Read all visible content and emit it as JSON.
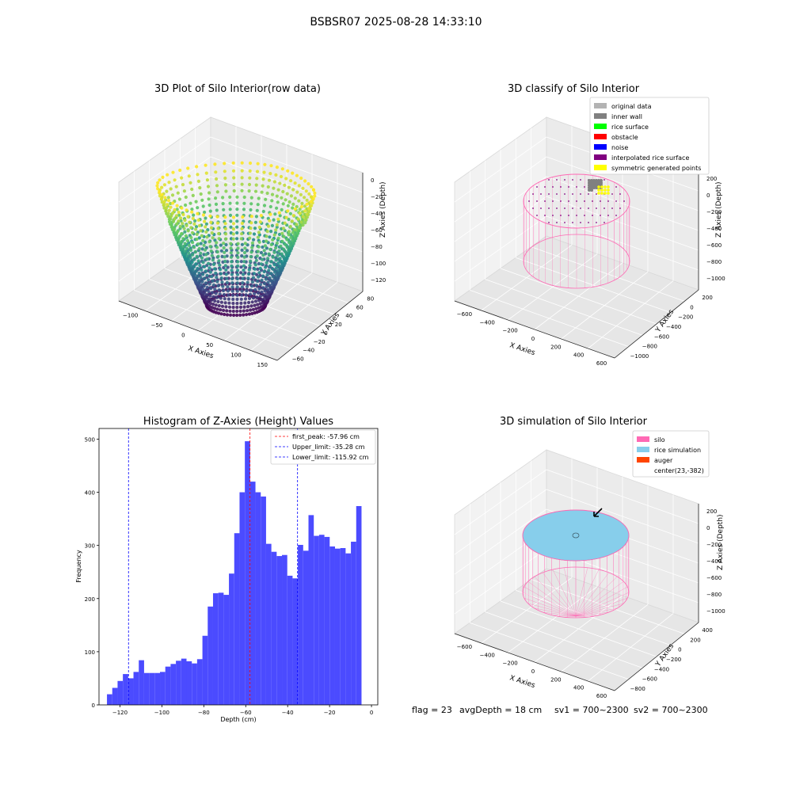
{
  "suptitle": "BSBSR07 2025-08-28 14:33:10",
  "status_line": {
    "flag": "flag = 23",
    "avg_depth": "avgDepth = 18 cm",
    "sv1": "sv1 = 700~2300",
    "sv2": "sv2 = 700~2300"
  },
  "panels": {
    "raw": {
      "title": "3D Plot of Silo Interior(row data)",
      "xlabel": "X Axies",
      "ylabel": "Y Axies",
      "zlabel": "Z Axies (Depth)",
      "x_ticks": [
        "−100",
        "−50",
        "0",
        "50",
        "100",
        "150"
      ],
      "y_ticks": [
        "−60",
        "−40",
        "−20",
        "0",
        "20",
        "40",
        "60",
        "80"
      ],
      "z_ticks": [
        "0",
        "−20",
        "−40",
        "−60",
        "−80",
        "−100",
        "−120"
      ],
      "colormap": [
        "#440154",
        "#3b528b",
        "#21918c",
        "#5ec962",
        "#fde725"
      ]
    },
    "classify": {
      "title": "3D classify of Silo Interior",
      "xlabel": "X Axies",
      "ylabel": "Y Axies",
      "zlabel": "Z Axies (Depth)",
      "x_ticks": [
        "−600",
        "−400",
        "−200",
        "0",
        "200",
        "400",
        "600"
      ],
      "y_ticks": [
        "−1000",
        "−800",
        "−600",
        "−400",
        "−200",
        "0",
        "200"
      ],
      "z_ticks": [
        "200",
        "0",
        "−200",
        "−400",
        "−600",
        "−800",
        "−1000"
      ],
      "legend": [
        {
          "label": "original data",
          "color": "#b3b3b3"
        },
        {
          "label": "inner wall",
          "color": "#808080"
        },
        {
          "label": "rice surface",
          "color": "#00ff00"
        },
        {
          "label": "obstacle",
          "color": "#ff0000"
        },
        {
          "label": "noise",
          "color": "#0000ff"
        },
        {
          "label": "interpolated rice surface",
          "color": "#800080"
        },
        {
          "label": "symmetric generated points",
          "color": "#ffff00"
        }
      ]
    },
    "histogram": {
      "title": "Histogram of Z-Axies (Height) Values",
      "xlabel": "Depth (cm)",
      "ylabel": "Frequency",
      "bar_color": "#4b4bff",
      "legend": [
        {
          "label": "first_peak: -57.96 cm",
          "color": "#ff0000"
        },
        {
          "label": "Upper_limit: -35.28 cm",
          "color": "#0000ff"
        },
        {
          "label": "Lower_limit: -115.92 cm",
          "color": "#0000ff"
        }
      ]
    },
    "simulation": {
      "title": "3D simulation of Silo Interior",
      "xlabel": "X Axies",
      "ylabel": "Y Axies",
      "zlabel": "Z Axies (Depth)",
      "x_ticks": [
        "−600",
        "−400",
        "−200",
        "0",
        "200",
        "400",
        "600"
      ],
      "y_ticks": [
        "−800",
        "−600",
        "−400",
        "−200",
        "0",
        "200",
        "400"
      ],
      "z_ticks": [
        "200",
        "0",
        "−200",
        "−400",
        "−600",
        "−800",
        "−1000"
      ],
      "legend": [
        {
          "label": "silo",
          "color": "#ff69b4"
        },
        {
          "label": "rice simulation",
          "color": "#87ceeb"
        },
        {
          "label": "auger",
          "color": "#ff4500"
        },
        {
          "label": "center(23,-382)",
          "color": "#ffffff"
        }
      ]
    }
  },
  "chart_data": [
    {
      "type": "bar",
      "title": "Histogram of Z-Axies (Height) Values",
      "xlabel": "Depth (cm)",
      "ylabel": "Frequency",
      "xlim": [
        -130,
        3
      ],
      "ylim": [
        0,
        520
      ],
      "x_ticks": [
        -120,
        -100,
        -80,
        -60,
        -40,
        -20,
        0
      ],
      "y_ticks": [
        0,
        100,
        200,
        300,
        400,
        500
      ],
      "bin_start": -126.2,
      "bin_width": 2.53,
      "values": [
        20,
        32,
        45,
        58,
        50,
        62,
        84,
        60,
        60,
        60,
        62,
        72,
        77,
        83,
        87,
        82,
        78,
        86,
        130,
        185,
        210,
        211,
        207,
        247,
        323,
        400,
        496,
        420,
        400,
        392,
        303,
        288,
        280,
        282,
        243,
        238,
        301,
        290,
        357,
        318,
        320,
        316,
        298,
        294,
        295,
        285,
        307,
        374
      ],
      "vlines": [
        {
          "name": "first_peak: -57.96 cm",
          "x": -57.96,
          "color": "#ff0000"
        },
        {
          "name": "Upper_limit: -35.28 cm",
          "x": -35.28,
          "color": "#0000ff"
        },
        {
          "name": "Lower_limit: -115.92 cm",
          "x": -115.92,
          "color": "#0000ff"
        }
      ],
      "legend_position": "top-right"
    }
  ]
}
